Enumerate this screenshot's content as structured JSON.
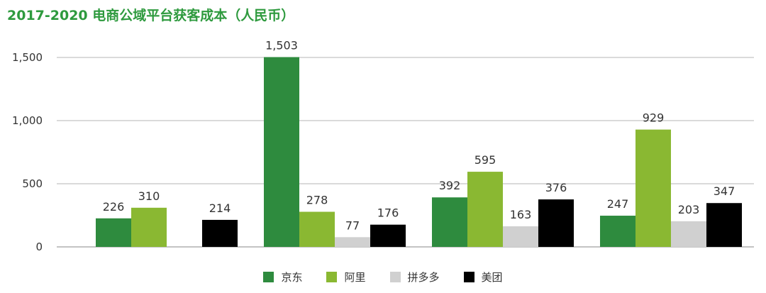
{
  "chart_data": {
    "type": "bar",
    "title": "2017-2020 电商公域平台获客成本（人民币）",
    "categories": [
      "",
      "",
      "",
      ""
    ],
    "series": [
      {
        "name": "京东",
        "color": "#2e8b3e",
        "values": [
          226,
          1503,
          392,
          247
        ]
      },
      {
        "name": "阿里",
        "color": "#8ab832",
        "values": [
          310,
          278,
          595,
          929
        ]
      },
      {
        "name": "拼多多",
        "color": "#d0d0d0",
        "values": [
          null,
          77,
          163,
          203
        ]
      },
      {
        "name": "美团",
        "color": "#000000",
        "values": [
          214,
          176,
          376,
          347
        ]
      }
    ],
    "value_labels": [
      [
        "226",
        "1,503",
        "392",
        "247"
      ],
      [
        "310",
        "278",
        "595",
        "929"
      ],
      [
        "",
        "77",
        "163",
        "203"
      ],
      [
        "214",
        "176",
        "376",
        "347"
      ]
    ],
    "yticks": [
      0,
      500,
      1000,
      1500
    ],
    "ytick_labels": [
      "0",
      "500",
      "1,000",
      "1,500"
    ],
    "ylim": [
      0,
      1700
    ],
    "grid": "horizontal",
    "legend_position": "bottom-center"
  }
}
